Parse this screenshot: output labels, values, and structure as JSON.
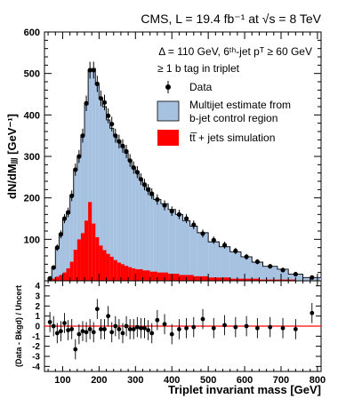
{
  "chart_data": [
    {
      "type": "area",
      "title": "CMS, L = 19.4 fb⁻¹ at √s = 8 TeV",
      "annotations": [
        "Δ = 110 GeV, 6ᵗʰ-jet pᵀ ≥ 60 GeV",
        "≥ 1 b tag in triplet"
      ],
      "xlabel": "Triplet invariant mass [GeV]",
      "ylabel": "dN/dMⱼⱼⱼ [GeV⁻¹]",
      "xlim": [
        50,
        810
      ],
      "ylim": [
        0,
        600
      ],
      "xticks": [
        "100",
        "200",
        "300",
        "400",
        "500",
        "600",
        "700",
        "800"
      ],
      "yticks": [
        "100",
        "200",
        "300",
        "400",
        "500",
        "600"
      ],
      "legend": [
        "Data",
        "Multijet estimate from",
        "b-jet control region",
        "tt̅ + jets simulation"
      ],
      "legend_position": "top-right",
      "series": [
        {
          "name": "Multijet estimate from b-jet control region",
          "color": "#a6c2e0",
          "bins": [
            [
              60,
              70,
              5
            ],
            [
              70,
              80,
              32
            ],
            [
              80,
              90,
              78
            ],
            [
              90,
              100,
              112
            ],
            [
              100,
              110,
              148
            ],
            [
              110,
              120,
              162
            ],
            [
              120,
              130,
              205
            ],
            [
              130,
              140,
              268
            ],
            [
              140,
              150,
              298
            ],
            [
              150,
              160,
              350
            ],
            [
              160,
              170,
              425
            ],
            [
              170,
              180,
              508
            ],
            [
              180,
              190,
              512
            ],
            [
              190,
              200,
              472
            ],
            [
              200,
              210,
              440
            ],
            [
              210,
              220,
              420
            ],
            [
              220,
              230,
              388
            ],
            [
              230,
              240,
              368
            ],
            [
              240,
              250,
              350
            ],
            [
              250,
              260,
              338
            ],
            [
              260,
              270,
              322
            ],
            [
              270,
              280,
              308
            ],
            [
              280,
              290,
              290
            ],
            [
              290,
              300,
              272
            ],
            [
              300,
              310,
              262
            ],
            [
              310,
              320,
              245
            ],
            [
              320,
              330,
              230
            ],
            [
              330,
              340,
              224
            ],
            [
              340,
              350,
              206
            ],
            [
              350,
              370,
              196
            ],
            [
              370,
              390,
              186
            ],
            [
              390,
              410,
              172
            ],
            [
              410,
              430,
              160
            ],
            [
              430,
              450,
              145
            ],
            [
              450,
              470,
              132
            ],
            [
              470,
              500,
              116
            ],
            [
              500,
              530,
              94
            ],
            [
              530,
              560,
              82
            ],
            [
              560,
              590,
              70
            ],
            [
              590,
              620,
              58
            ],
            [
              620,
              650,
              45
            ],
            [
              650,
              690,
              35
            ],
            [
              690,
              720,
              28
            ],
            [
              720,
              760,
              16
            ],
            [
              760,
              810,
              8
            ]
          ]
        },
        {
          "name": "tt̅ + jets simulation",
          "color": "#ff0000",
          "bins": [
            [
              60,
              80,
              5
            ],
            [
              80,
              90,
              10
            ],
            [
              90,
              100,
              14
            ],
            [
              100,
              110,
              20
            ],
            [
              110,
              120,
              30
            ],
            [
              120,
              130,
              46
            ],
            [
              130,
              140,
              75
            ],
            [
              140,
              150,
              100
            ],
            [
              150,
              160,
              115
            ],
            [
              160,
              170,
              145
            ],
            [
              170,
              180,
              190
            ],
            [
              180,
              190,
              138
            ],
            [
              190,
              200,
              105
            ],
            [
              200,
              210,
              85
            ],
            [
              210,
              220,
              74
            ],
            [
              220,
              230,
              65
            ],
            [
              230,
              240,
              58
            ],
            [
              240,
              250,
              50
            ],
            [
              250,
              260,
              44
            ],
            [
              260,
              270,
              40
            ],
            [
              270,
              280,
              36
            ],
            [
              280,
              290,
              33
            ],
            [
              290,
              300,
              30
            ],
            [
              300,
              320,
              28
            ],
            [
              320,
              340,
              25
            ],
            [
              340,
              360,
              22
            ],
            [
              360,
              390,
              20
            ],
            [
              390,
              420,
              17
            ],
            [
              420,
              460,
              14
            ],
            [
              460,
              500,
              11
            ],
            [
              500,
              560,
              8
            ],
            [
              560,
              640,
              5
            ],
            [
              640,
              740,
              3
            ],
            [
              740,
              810,
              1
            ]
          ]
        },
        {
          "name": "Data",
          "color": "#000000",
          "points": [
            [
              65,
              6
            ],
            [
              75,
              32
            ],
            [
              85,
              80
            ],
            [
              95,
              112
            ],
            [
              105,
              150
            ],
            [
              115,
              165
            ],
            [
              125,
              205
            ],
            [
              135,
              268
            ],
            [
              145,
              300
            ],
            [
              155,
              350
            ],
            [
              165,
              428
            ],
            [
              175,
              508
            ],
            [
              185,
              508
            ],
            [
              195,
              475
            ],
            [
              205,
              440
            ],
            [
              215,
              430
            ],
            [
              225,
              398
            ],
            [
              235,
              378
            ],
            [
              245,
              350
            ],
            [
              255,
              336
            ],
            [
              265,
              325
            ],
            [
              275,
              312
            ],
            [
              285,
              290
            ],
            [
              295,
              273
            ],
            [
              305,
              262
            ],
            [
              315,
              245
            ],
            [
              325,
              232
            ],
            [
              335,
              220
            ],
            [
              345,
              210
            ],
            [
              360,
              196
            ],
            [
              380,
              182
            ],
            [
              400,
              168
            ],
            [
              420,
              160
            ],
            [
              440,
              150
            ],
            [
              460,
              135
            ],
            [
              485,
              114
            ],
            [
              515,
              98
            ],
            [
              545,
              86
            ],
            [
              575,
              72
            ],
            [
              605,
              58
            ],
            [
              635,
              46
            ],
            [
              670,
              35
            ],
            [
              705,
              26
            ],
            [
              740,
              16
            ],
            [
              785,
              8
            ]
          ]
        }
      ]
    },
    {
      "type": "scatter",
      "xlabel": "Triplet invariant mass [GeV]",
      "ylabel": "(Data - Bkgd) / Uncert",
      "xlim": [
        50,
        810
      ],
      "ylim": [
        -4.5,
        4.5
      ],
      "yticks": [
        "-4",
        "-3",
        "-2",
        "-1",
        "0",
        "1",
        "2",
        "3",
        "4"
      ],
      "reference_line": {
        "y": 0,
        "color": "#ff0000"
      },
      "points": [
        [
          65,
          0.4
        ],
        [
          75,
          0.0
        ],
        [
          85,
          -0.7
        ],
        [
          95,
          -0.5
        ],
        [
          105,
          0.3
        ],
        [
          115,
          -0.4
        ],
        [
          125,
          -0.3
        ],
        [
          135,
          -2.3
        ],
        [
          145,
          -0.8
        ],
        [
          155,
          -0.5
        ],
        [
          165,
          -0.6
        ],
        [
          175,
          -0.3
        ],
        [
          185,
          -0.6
        ],
        [
          195,
          1.7
        ],
        [
          205,
          -0.3
        ],
        [
          215,
          -0.3
        ],
        [
          225,
          1.0
        ],
        [
          235,
          -0.6
        ],
        [
          245,
          0.0
        ],
        [
          255,
          -0.3
        ],
        [
          265,
          -0.7
        ],
        [
          275,
          0.0
        ],
        [
          285,
          -0.3
        ],
        [
          295,
          -0.3
        ],
        [
          305,
          -0.1
        ],
        [
          315,
          -0.2
        ],
        [
          325,
          -0.2
        ],
        [
          335,
          -0.4
        ],
        [
          345,
          -0.7
        ],
        [
          360,
          0.6
        ],
        [
          380,
          0.2
        ],
        [
          400,
          -0.8
        ],
        [
          420,
          -0.3
        ],
        [
          440,
          -0.2
        ],
        [
          460,
          -0.1
        ],
        [
          485,
          0.7
        ],
        [
          515,
          -0.2
        ],
        [
          545,
          0.1
        ],
        [
          575,
          -0.1
        ],
        [
          605,
          0.0
        ],
        [
          635,
          -0.2
        ],
        [
          670,
          -0.1
        ],
        [
          705,
          -0.2
        ],
        [
          740,
          -0.3
        ],
        [
          785,
          1.3
        ]
      ],
      "error": 1.0
    }
  ]
}
